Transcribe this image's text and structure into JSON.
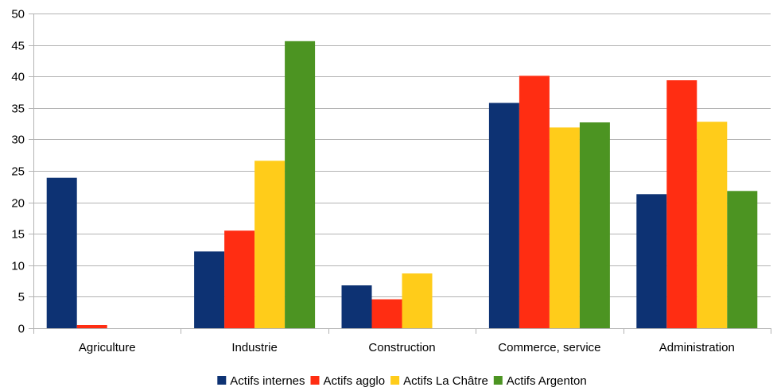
{
  "chart_data": {
    "type": "bar",
    "categories": [
      "Agriculture",
      "Industrie",
      "Construction",
      "Commerce, service",
      "Administration"
    ],
    "series": [
      {
        "name": "Actifs internes",
        "color": "#0d3273",
        "values": [
          23.9,
          12.2,
          6.8,
          35.8,
          21.3
        ]
      },
      {
        "name": "Actifs agglo",
        "color": "#ff2d12",
        "values": [
          0.5,
          15.5,
          4.6,
          40.1,
          39.4
        ]
      },
      {
        "name": "Actifs La Châtre",
        "color": "#ffcc1a",
        "values": [
          0,
          26.6,
          8.7,
          31.9,
          32.8
        ]
      },
      {
        "name": "Actifs Argenton",
        "color": "#4c9422",
        "values": [
          0,
          45.6,
          0,
          32.7,
          21.8
        ]
      }
    ],
    "y_ticks": [
      "0",
      "5",
      "10",
      "15",
      "20",
      "25",
      "30",
      "35",
      "40",
      "45",
      "50"
    ],
    "ylim": [
      0,
      50
    ],
    "y_step": 5,
    "grid": true,
    "legend_position": "bottom-center",
    "title": "",
    "xlabel": "",
    "ylabel": ""
  }
}
